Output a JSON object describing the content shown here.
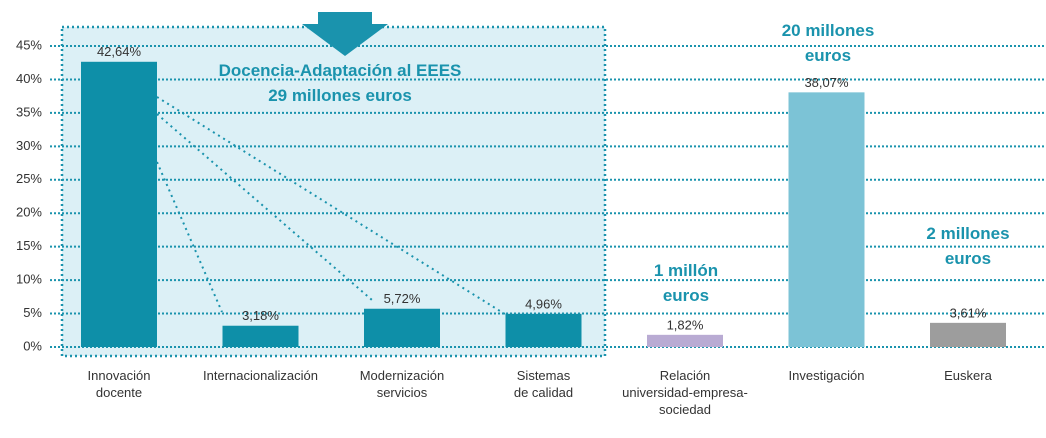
{
  "chart_data": {
    "type": "bar",
    "categories": [
      "Innovación\ndocente",
      "Internacionalización",
      "Modernización\nservicios",
      "Sistemas\nde calidad",
      "Relación\nuniversidad-empresa-\nsociedad",
      "Investigación",
      "Euskera"
    ],
    "values": [
      42.64,
      3.18,
      5.72,
      4.96,
      1.82,
      38.07,
      3.61
    ],
    "value_labels": [
      "42,64%",
      "3,18%",
      "5,72%",
      "4,96%",
      "1,82%",
      "38,07%",
      "3,61%"
    ],
    "colors": [
      "#0e8fa8",
      "#0e8fa8",
      "#0e8fa8",
      "#0e8fa8",
      "#b9abd3",
      "#7cc3d6",
      "#9d9d9d"
    ],
    "ylim": [
      0,
      45
    ],
    "yticks": [
      {
        "value": 0,
        "label": "0%"
      },
      {
        "value": 5,
        "label": "5%"
      },
      {
        "value": 10,
        "label": "10%"
      },
      {
        "value": 15,
        "label": "15%"
      },
      {
        "value": 20,
        "label": "20%"
      },
      {
        "value": 25,
        "label": "25%"
      },
      {
        "value": 30,
        "label": "30%"
      },
      {
        "value": 35,
        "label": "35%"
      },
      {
        "value": 40,
        "label": "40%"
      },
      {
        "value": 45,
        "label": "45%"
      }
    ],
    "grid": true,
    "annotations": [
      "Docencia-Adaptación al EEES\n29 millones euros",
      "20 millones\neuros",
      "1 millón\neuros",
      "2 millones\neuros"
    ]
  }
}
